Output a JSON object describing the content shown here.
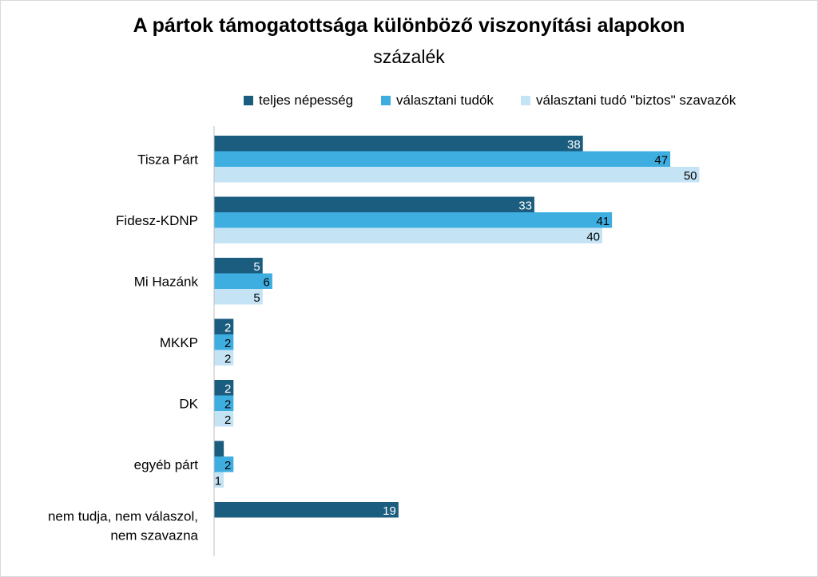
{
  "title": "A pártok támogatottsága különböző viszonyítási alapokon",
  "subtitle": "százalék",
  "colors": {
    "series1": "#1b5d7f",
    "series2": "#3eaee0",
    "series3": "#c4e4f6",
    "axis": "#bfbfbf"
  },
  "chart_data": {
    "type": "bar",
    "orientation": "horizontal",
    "title": "A pártok támogatottsága különböző viszonyítási alapokon",
    "subtitle": "százalék",
    "legend_position": "top",
    "grid": false,
    "xlim": [
      0,
      65
    ],
    "categories": [
      [
        "Tisza Párt"
      ],
      [
        "Fidesz-KDNP"
      ],
      [
        "Mi Hazánk"
      ],
      [
        "MKKP"
      ],
      [
        "DK"
      ],
      [
        "egyéb párt"
      ],
      [
        "nem tudja, nem válaszol,",
        "nem szavazna"
      ]
    ],
    "series": [
      {
        "name": "teljes népesség",
        "values": [
          38,
          33,
          5,
          2,
          2,
          1,
          19
        ],
        "labels": [
          "38",
          "33",
          "5",
          "2",
          "2",
          "",
          "19"
        ]
      },
      {
        "name": "választani tudók",
        "values": [
          47,
          41,
          6,
          2,
          2,
          2,
          null
        ],
        "labels": [
          "47",
          "41",
          "6",
          "2",
          "2",
          "2",
          ""
        ]
      },
      {
        "name": "választani tudó \"biztos\" szavazók",
        "values": [
          50,
          40,
          5,
          2,
          2,
          1,
          null
        ],
        "labels": [
          "50",
          "40",
          "5",
          "2",
          "2",
          "1",
          ""
        ]
      }
    ]
  }
}
